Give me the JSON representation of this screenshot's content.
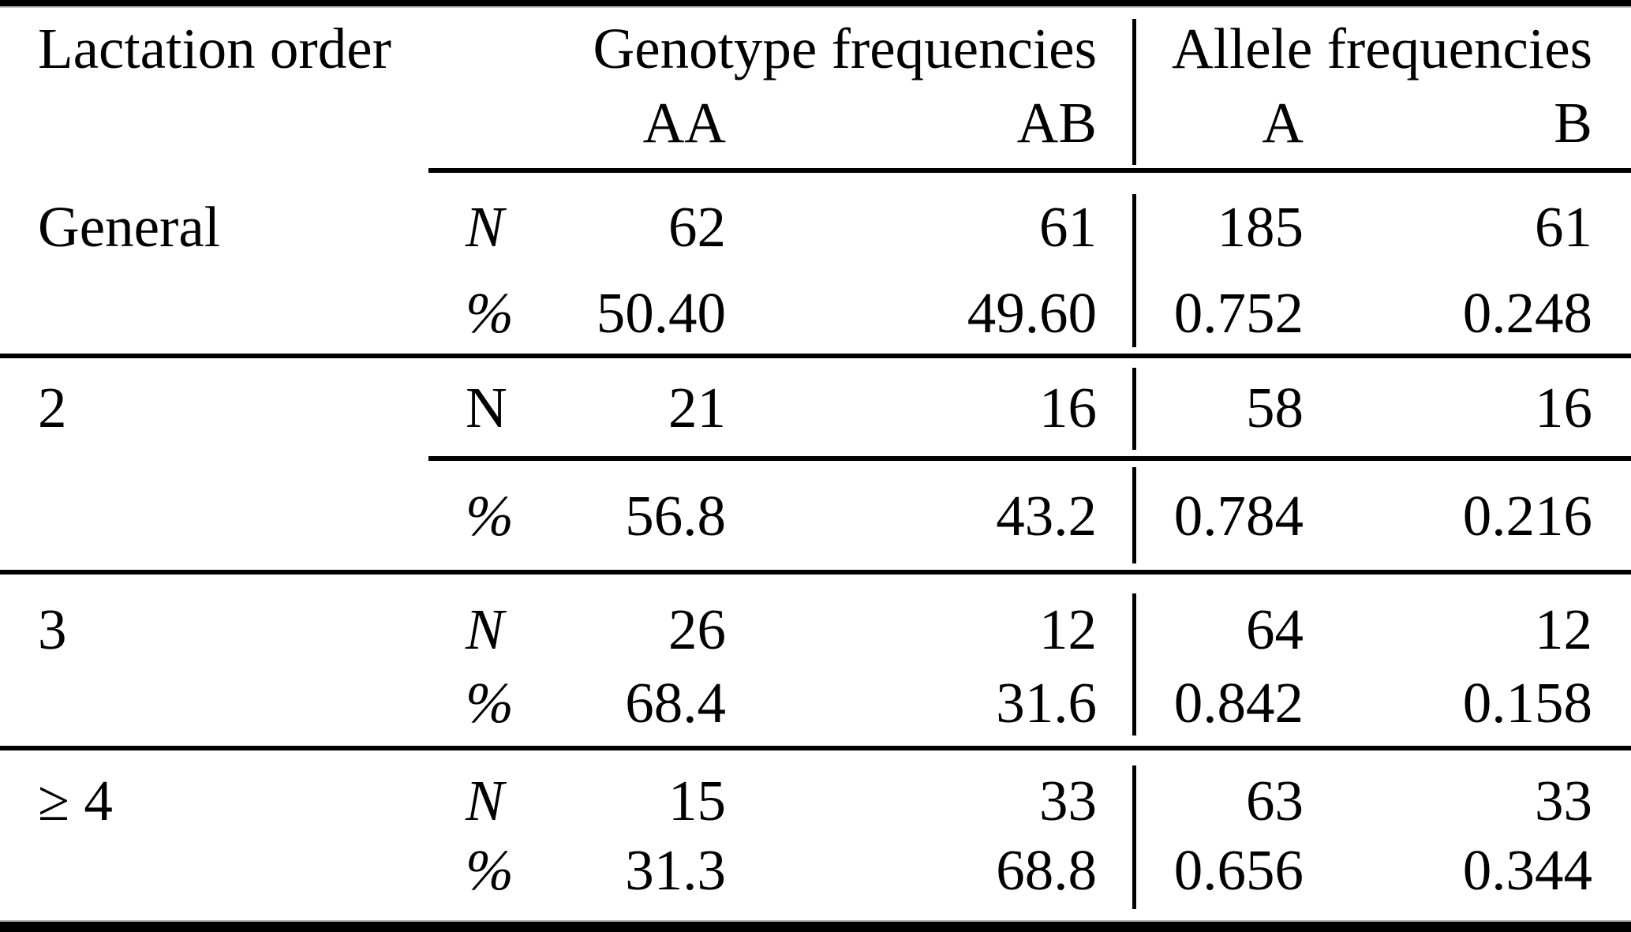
{
  "page": {
    "background": "#ffffff",
    "text_color": "#000000",
    "rule_color": "#000000"
  },
  "table": {
    "row_label_header": "Lactation order",
    "groups": [
      {
        "label": "Genotype frequencies",
        "columns": [
          "AA",
          "AB"
        ]
      },
      {
        "label": "Allele frequencies",
        "columns": [
          "A",
          "B"
        ]
      }
    ],
    "subheaders": {
      "aa": "AA",
      "ab": "AB",
      "a": "A",
      "b": "B"
    },
    "rows": [
      {
        "label": "General",
        "count_row": {
          "stat": "N",
          "stat_style": "italic",
          "values": [
            "62",
            "61",
            "185",
            "61"
          ]
        },
        "percent_row": {
          "stat": "%",
          "stat_style": "italic",
          "values": [
            "50.40",
            "49.60",
            "0.752",
            "0.248"
          ]
        }
      },
      {
        "label": "2",
        "count_row": {
          "stat": "N",
          "stat_style": "upright",
          "values": [
            "21",
            "16",
            "58",
            "16"
          ]
        },
        "percent_row": {
          "stat": "%",
          "stat_style": "italic",
          "values": [
            "56.8",
            "43.2",
            "0.784",
            "0.216"
          ]
        }
      },
      {
        "label": "3",
        "count_row": {
          "stat": "N",
          "stat_style": "italic",
          "values": [
            "26",
            "12",
            "64",
            "12"
          ]
        },
        "percent_row": {
          "stat": "%",
          "stat_style": "italic",
          "values": [
            "68.4",
            "31.6",
            "0.842",
            "0.158"
          ]
        }
      },
      {
        "label": "≥ 4",
        "count_row": {
          "stat": "N",
          "stat_style": "italic",
          "values": [
            "15",
            "33",
            "63",
            "33"
          ]
        },
        "percent_row": {
          "stat": "%",
          "stat_style": "italic",
          "values": [
            "31.3",
            "68.8",
            "0.656",
            "0.344"
          ]
        }
      }
    ]
  }
}
